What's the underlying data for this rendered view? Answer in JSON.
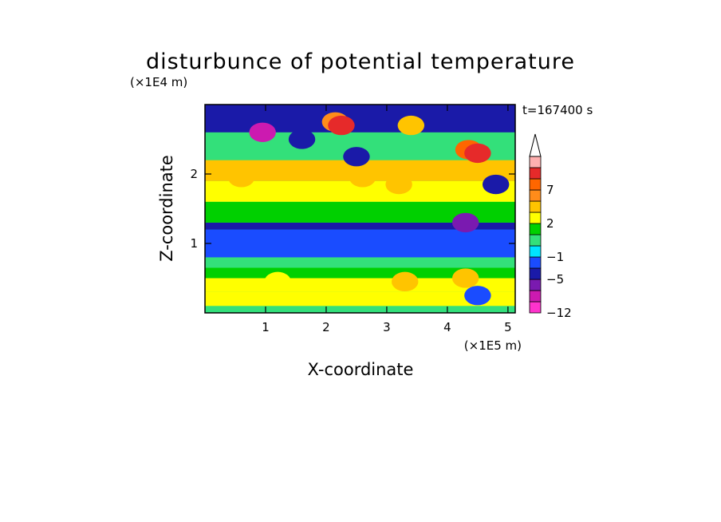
{
  "chart_data": {
    "type": "heatmap",
    "title": "disturbunce of potential temperature",
    "time_label": "t=167400 s",
    "xlabel": "X-coordinate",
    "ylabel": "Z-coordinate",
    "x_unit": "(×1E5 m)",
    "y_unit": "(×1E4 m)",
    "xlim": [
      0,
      5.12
    ],
    "ylim": [
      0,
      3.0
    ],
    "x_ticks": [
      {
        "value": 1,
        "label": "1"
      },
      {
        "value": 2,
        "label": "2"
      },
      {
        "value": 3,
        "label": "3"
      },
      {
        "value": 4,
        "label": "4"
      },
      {
        "value": 5,
        "label": "5"
      }
    ],
    "y_ticks": [
      {
        "value": 1,
        "label": "1"
      },
      {
        "value": 2,
        "label": "2"
      }
    ],
    "colorbar": {
      "levels": [
        -12,
        -9,
        -7,
        -5,
        -3,
        -1,
        0,
        1,
        2,
        4,
        5,
        7,
        8,
        9
      ],
      "labels": [
        {
          "value": 7,
          "label": "7"
        },
        {
          "value": 2,
          "label": "2"
        },
        {
          "value": -1,
          "label": "−1"
        },
        {
          "value": -5,
          "label": "−5"
        },
        {
          "value": -12,
          "label": "−12"
        }
      ],
      "colors": [
        "#ff33cc",
        "#cc1ab0",
        "#7a1ab0",
        "#1a1aa8",
        "#1a4cff",
        "#00e5ff",
        "#33e07a",
        "#00d000",
        "#ffff00",
        "#ffc400",
        "#ff8c1a",
        "#ff6600",
        "#e62a2a",
        "#ffb0b0"
      ],
      "overflow_color": "#ffffff",
      "extend": "max"
    },
    "field_bands": [
      {
        "z_range": [
          0.0,
          0.1
        ],
        "dominant_value": 0.5
      },
      {
        "z_range": [
          0.1,
          0.3
        ],
        "dominant_value": 2.5
      },
      {
        "z_range": [
          0.3,
          0.5
        ],
        "dominant_value": 2.2
      },
      {
        "z_range": [
          0.5,
          0.65
        ],
        "dominant_value": 1.5
      },
      {
        "z_range": [
          0.65,
          0.8
        ],
        "dominant_value": 0.5
      },
      {
        "z_range": [
          0.8,
          1.2
        ],
        "dominant_value": -1.5
      },
      {
        "z_range": [
          1.2,
          1.3
        ],
        "dominant_value": -3.5
      },
      {
        "z_range": [
          1.3,
          1.6
        ],
        "dominant_value": 1.5
      },
      {
        "z_range": [
          1.6,
          1.9
        ],
        "dominant_value": 3.0
      },
      {
        "z_range": [
          1.9,
          2.2
        ],
        "dominant_value": 4.0
      },
      {
        "z_range": [
          2.2,
          2.6
        ],
        "dominant_value": 0.5
      },
      {
        "z_range": [
          2.6,
          3.0
        ],
        "dominant_value": -4.0
      }
    ],
    "features": [
      {
        "x": 0.95,
        "z": 2.6,
        "value": -7.5
      },
      {
        "x": 1.6,
        "z": 2.5,
        "value": -4.0
      },
      {
        "x": 2.15,
        "z": 2.75,
        "value": 5.5
      },
      {
        "x": 2.25,
        "z": 2.7,
        "value": 8.0
      },
      {
        "x": 2.5,
        "z": 2.25,
        "value": -4.0
      },
      {
        "x": 3.4,
        "z": 2.7,
        "value": 4.5
      },
      {
        "x": 4.1,
        "z": 2.85,
        "value": -4.5
      },
      {
        "x": 4.35,
        "z": 2.35,
        "value": 7.5
      },
      {
        "x": 4.5,
        "z": 2.3,
        "value": 8.5
      },
      {
        "x": 4.8,
        "z": 1.85,
        "value": -4.0
      },
      {
        "x": 0.6,
        "z": 1.95,
        "value": 4.2
      },
      {
        "x": 1.0,
        "z": 2.05,
        "value": 4.5
      },
      {
        "x": 2.6,
        "z": 1.95,
        "value": 4.5
      },
      {
        "x": 3.2,
        "z": 1.85,
        "value": 4.5
      },
      {
        "x": 4.3,
        "z": 1.3,
        "value": -5.5
      },
      {
        "x": 4.3,
        "z": 0.5,
        "value": 4.5
      },
      {
        "x": 4.5,
        "z": 0.25,
        "value": -1.5
      },
      {
        "x": 1.2,
        "z": 0.45,
        "value": 3.5
      },
      {
        "x": 3.3,
        "z": 0.45,
        "value": 4.2
      }
    ]
  }
}
